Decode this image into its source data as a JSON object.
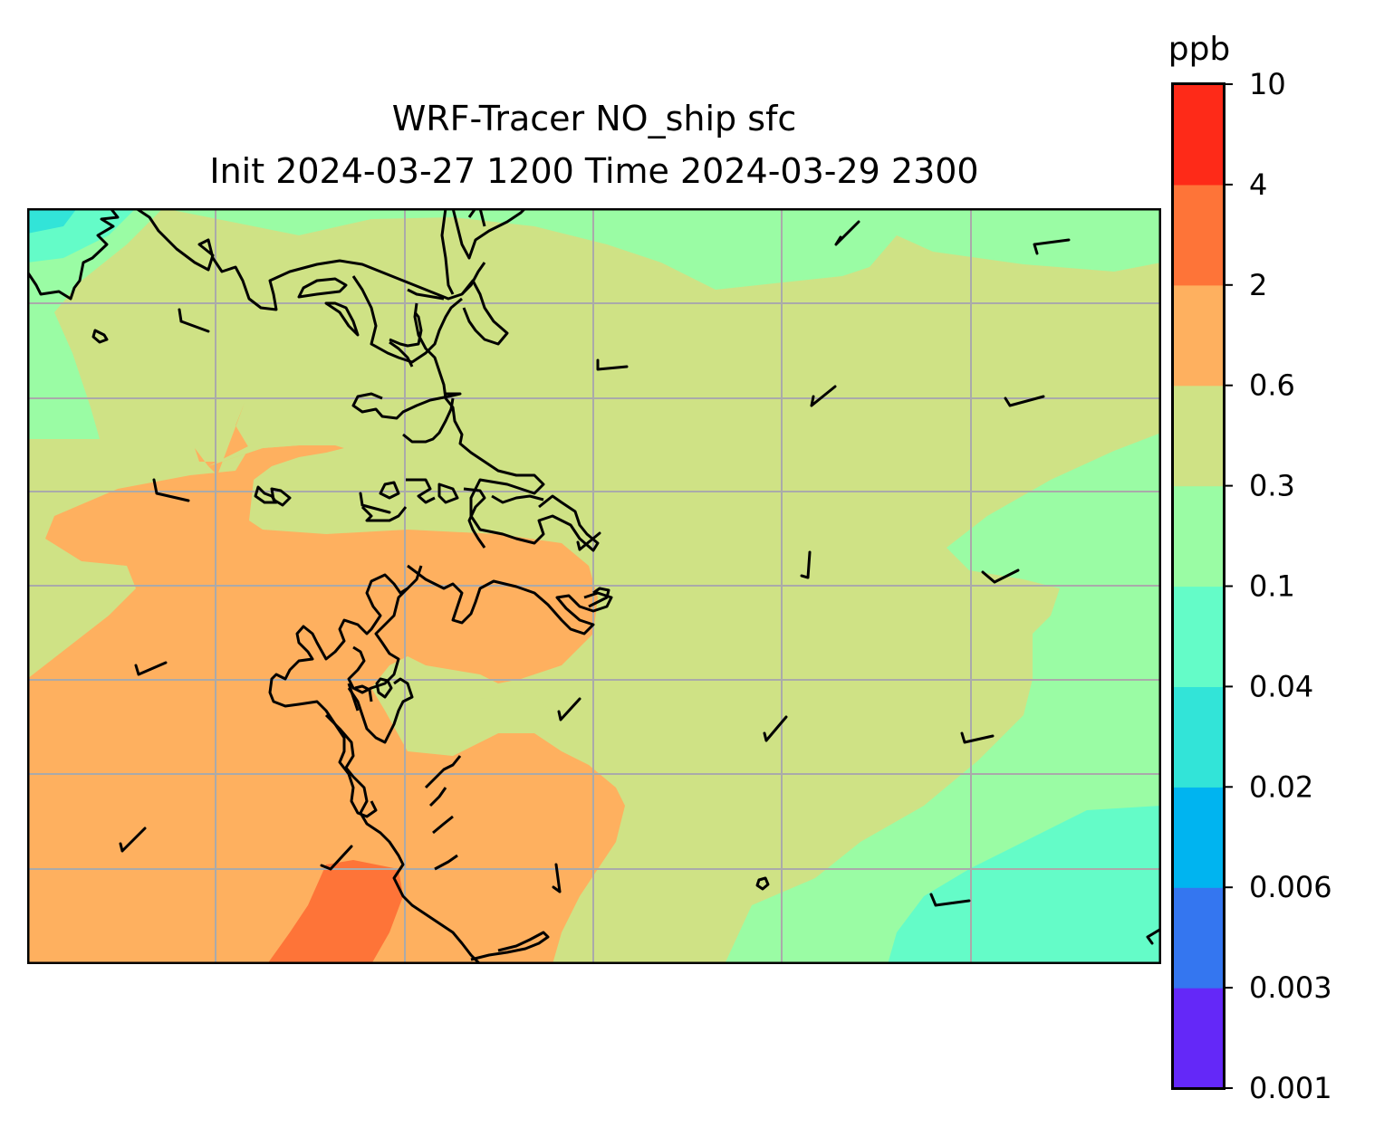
{
  "figure": {
    "title_line1": "WRF-Tracer NO_ship sfc",
    "title_line2": "Init 2024-03-27 1200 Time 2024-03-29 2300"
  },
  "colorbar": {
    "unit": "ppb",
    "ticks": [
      "0.001",
      "0.003",
      "0.006",
      "0.02",
      "0.04",
      "0.1",
      "0.3",
      "0.6",
      "2",
      "4",
      "10"
    ],
    "colors": [
      "#6428f8",
      "#3476f0",
      "#00b4f0",
      "#32e4d8",
      "#64fcc8",
      "#9afca4",
      "#cfe285",
      "#feb05f",
      "#fe7438",
      "#fe2a18"
    ]
  },
  "map": {
    "fill_levels": {
      "lt_0.04": "#32e4d8",
      "0.04_0.1": "#64fcc8",
      "0.1_0.3": "#9afca4",
      "0.3_0.6": "#cfe285",
      "0.6_2": "#feb05f",
      "2_4": "#fe7438"
    },
    "gridline_color": "#aaaaaa",
    "coastline_color": "#000000",
    "wind_barbs": "black"
  }
}
